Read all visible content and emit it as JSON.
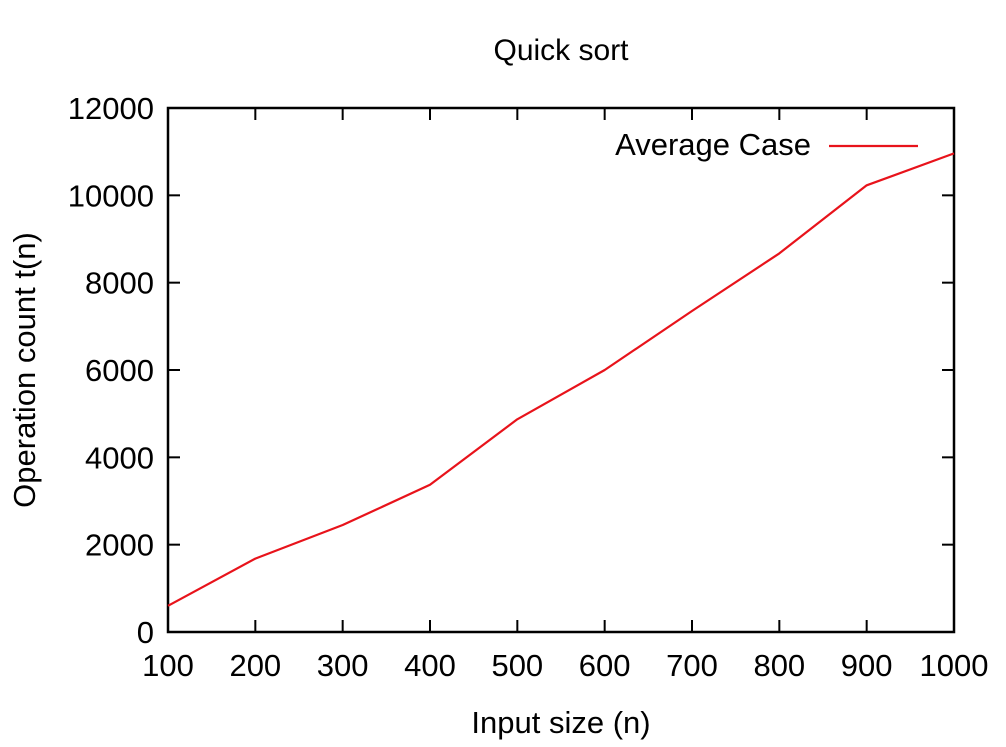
{
  "chart_data": {
    "type": "line",
    "title": "Quick sort",
    "xlabel": "Input size (n)",
    "ylabel": "Operation count t(n)",
    "xlim": [
      100,
      1000
    ],
    "ylim": [
      0,
      12000
    ],
    "x_ticks": [
      100,
      200,
      300,
      400,
      500,
      600,
      700,
      800,
      900,
      1000
    ],
    "y_ticks": [
      0,
      2000,
      4000,
      6000,
      8000,
      10000,
      12000
    ],
    "grid": false,
    "legend_position": "top-right",
    "series": [
      {
        "name": "Average Case",
        "color": "#e8131b",
        "x": [
          100,
          200,
          300,
          400,
          500,
          600,
          700,
          800,
          900,
          1000
        ],
        "y": [
          600,
          1680,
          2450,
          3370,
          4870,
          6000,
          7350,
          8670,
          10230,
          10960
        ]
      }
    ]
  }
}
